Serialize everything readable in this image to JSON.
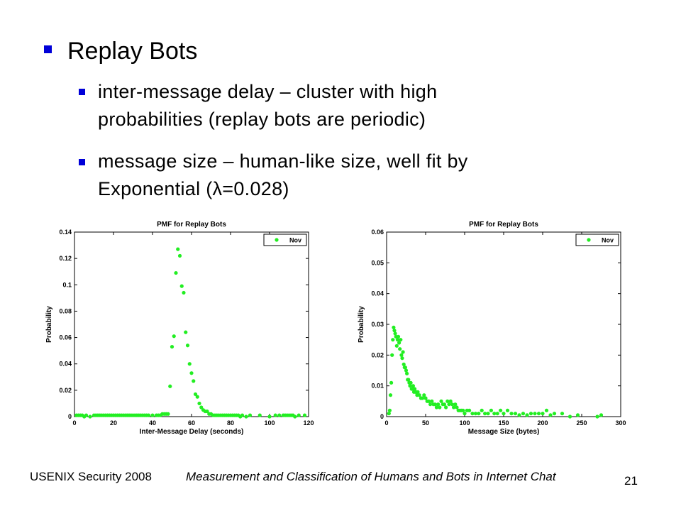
{
  "slide": {
    "title": "Replay Bots",
    "bullets": [
      {
        "lines": [
          "inter-message delay – cluster with high",
          "probabilities (replay bots are periodic)"
        ]
      },
      {
        "lines": [
          "message size – human-like size, well fit by",
          "Exponential (λ=0.028)"
        ]
      }
    ],
    "footer": {
      "left": "USENIX Security 2008",
      "center": "Measurement and Classification of Humans and Bots in Internet Chat",
      "page": "21"
    },
    "bullet_color": "#0000d8"
  },
  "chart_data": [
    {
      "type": "scatter",
      "title": "PMF for Replay Bots",
      "xlabel": "Inter-Message Delay (seconds)",
      "ylabel": "Probability",
      "xlim": [
        0,
        120
      ],
      "ylim": [
        0,
        0.14
      ],
      "xticks": [
        "0",
        "20",
        "40",
        "60",
        "80",
        "100",
        "120"
      ],
      "yticks": [
        "0",
        "0.02",
        "0.04",
        "0.06",
        "0.08",
        "0.1",
        "0.12",
        "0.14"
      ],
      "legend": "top-right",
      "color": "#22ee22",
      "series": [
        {
          "name": "Nov",
          "x": [
            1,
            2,
            3,
            4,
            5,
            6,
            8,
            10,
            11,
            12,
            13,
            14,
            15,
            16,
            17,
            18,
            19,
            20,
            21,
            22,
            23,
            24,
            25,
            26,
            27,
            28,
            29,
            30,
            31,
            32,
            33,
            34,
            35,
            36,
            37,
            38,
            40,
            42,
            43,
            44,
            45,
            46,
            47,
            48,
            49,
            50,
            51,
            52,
            53,
            54,
            55,
            56,
            57,
            58,
            59,
            60,
            61,
            62,
            63,
            64,
            65,
            66,
            67,
            68,
            69,
            70,
            71,
            72,
            73,
            74,
            75,
            76,
            77,
            78,
            79,
            80,
            81,
            82,
            83,
            84,
            85,
            86,
            88,
            90,
            95,
            100,
            103,
            105,
            107,
            108,
            109,
            110,
            111,
            112,
            113,
            115,
            118
          ],
          "y": [
            0.001,
            0.001,
            0.001,
            0.001,
            0,
            0.001,
            0,
            0.001,
            0.001,
            0.001,
            0.001,
            0.001,
            0.001,
            0.001,
            0.001,
            0.001,
            0.001,
            0.001,
            0.001,
            0.001,
            0.001,
            0.001,
            0.001,
            0.001,
            0.001,
            0.001,
            0.001,
            0.001,
            0.001,
            0.001,
            0.001,
            0.001,
            0.001,
            0.001,
            0.001,
            0.001,
            0.001,
            0.001,
            0.001,
            0.001,
            0.002,
            0.002,
            0.002,
            0.002,
            0.023,
            0.053,
            0.061,
            0.109,
            0.127,
            0.122,
            0.099,
            0.094,
            0.064,
            0.054,
            0.04,
            0.033,
            0.027,
            0.017,
            0.015,
            0.01,
            0.007,
            0.005,
            0.004,
            0.004,
            0.002,
            0.002,
            0.001,
            0.001,
            0.001,
            0.001,
            0.001,
            0.001,
            0.001,
            0.001,
            0.001,
            0.001,
            0.001,
            0.001,
            0.001,
            0.001,
            0,
            0.001,
            0,
            0.001,
            0.001,
            0,
            0.001,
            0.001,
            0.001,
            0.001,
            0.001,
            0.001,
            0.001,
            0.001,
            0,
            0.001,
            0.001
          ]
        }
      ]
    },
    {
      "type": "scatter",
      "title": "PMF for Replay Bots",
      "xlabel": "Message Size (bytes)",
      "ylabel": "Probability",
      "xlim": [
        0,
        300
      ],
      "ylim": [
        0,
        0.06
      ],
      "xticks": [
        "0",
        "50",
        "100",
        "150",
        "200",
        "250",
        "300"
      ],
      "yticks": [
        "0",
        "0.01",
        "0.02",
        "0.03",
        "0.04",
        "0.05",
        "0.06"
      ],
      "legend": "top-right",
      "color": "#22ee22",
      "series": [
        {
          "name": "Nov",
          "x": [
            3,
            4,
            5,
            6,
            7,
            8,
            9,
            10,
            11,
            12,
            13,
            14,
            15,
            16,
            17,
            18,
            19,
            20,
            21,
            22,
            23,
            24,
            25,
            26,
            27,
            28,
            29,
            30,
            31,
            32,
            33,
            34,
            35,
            36,
            37,
            38,
            39,
            40,
            42,
            44,
            46,
            48,
            50,
            52,
            54,
            56,
            58,
            60,
            62,
            64,
            66,
            68,
            70,
            72,
            74,
            76,
            78,
            80,
            82,
            84,
            86,
            88,
            90,
            92,
            94,
            96,
            98,
            100,
            103,
            106,
            110,
            114,
            118,
            122,
            126,
            130,
            134,
            138,
            142,
            146,
            150,
            155,
            160,
            165,
            170,
            175,
            180,
            185,
            190,
            195,
            200,
            205,
            210,
            215,
            225,
            235,
            245,
            270,
            275
          ],
          "y": [
            0.001,
            0.002,
            0.007,
            0.011,
            0.02,
            0.025,
            0.029,
            0.028,
            0.027,
            0.026,
            0.023,
            0.025,
            0.026,
            0.024,
            0.022,
            0.025,
            0.02,
            0.019,
            0.021,
            0.017,
            0.016,
            0.016,
            0.015,
            0.014,
            0.012,
            0.012,
            0.011,
            0.01,
            0.011,
            0.009,
            0.009,
            0.01,
            0.008,
            0.009,
            0.008,
            0.008,
            0.007,
            0.008,
            0.007,
            0.006,
            0.006,
            0.007,
            0.006,
            0.005,
            0.005,
            0.004,
            0.005,
            0.004,
            0.004,
            0.003,
            0.004,
            0.003,
            0.005,
            0.004,
            0.004,
            0.003,
            0.005,
            0.004,
            0.005,
            0.004,
            0.003,
            0.004,
            0.003,
            0.002,
            0.002,
            0.002,
            0.002,
            0.001,
            0.002,
            0.002,
            0.001,
            0.001,
            0.001,
            0.002,
            0.001,
            0.001,
            0.002,
            0.001,
            0.001,
            0.002,
            0.001,
            0.002,
            0.001,
            0.001,
            0.0005,
            0.001,
            0.0005,
            0.001,
            0.001,
            0.001,
            0.001,
            0.002,
            0.0005,
            0.001,
            0.001,
            0,
            0.0005,
            0,
            0.0005
          ]
        }
      ]
    }
  ]
}
